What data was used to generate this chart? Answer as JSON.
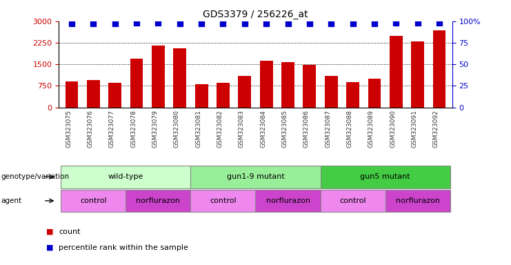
{
  "title": "GDS3379 / 256226_at",
  "samples": [
    "GSM323075",
    "GSM323076",
    "GSM323077",
    "GSM323078",
    "GSM323079",
    "GSM323080",
    "GSM323081",
    "GSM323082",
    "GSM323083",
    "GSM323084",
    "GSM323085",
    "GSM323086",
    "GSM323087",
    "GSM323088",
    "GSM323089",
    "GSM323090",
    "GSM323091",
    "GSM323092"
  ],
  "counts": [
    900,
    950,
    850,
    1700,
    2150,
    2050,
    800,
    850,
    1100,
    1620,
    1580,
    1480,
    1100,
    870,
    1000,
    2500,
    2300,
    2680
  ],
  "percentile_ranks": [
    97,
    97,
    97,
    98,
    98,
    97,
    97,
    97,
    97,
    97,
    97,
    97,
    97,
    97,
    97,
    98,
    98,
    98
  ],
  "bar_color": "#CC0000",
  "dot_color": "#0000CC",
  "ylim_left": [
    0,
    3000
  ],
  "ylim_right": [
    0,
    100
  ],
  "yticks_left": [
    0,
    750,
    1500,
    2250,
    3000
  ],
  "yticks_right": [
    0,
    25,
    50,
    75,
    100
  ],
  "grid_lines": [
    750,
    1500,
    2250
  ],
  "genotype_groups": [
    {
      "label": "wild-type",
      "start": 0,
      "end": 5,
      "color": "#ccffcc"
    },
    {
      "label": "gun1-9 mutant",
      "start": 6,
      "end": 11,
      "color": "#99ee99"
    },
    {
      "label": "gun5 mutant",
      "start": 12,
      "end": 17,
      "color": "#44cc44"
    }
  ],
  "agent_groups": [
    {
      "label": "control",
      "start": 0,
      "end": 2,
      "color": "#ee88ee"
    },
    {
      "label": "norflurazon",
      "start": 3,
      "end": 5,
      "color": "#cc44cc"
    },
    {
      "label": "control",
      "start": 6,
      "end": 8,
      "color": "#ee88ee"
    },
    {
      "label": "norflurazon",
      "start": 9,
      "end": 11,
      "color": "#cc44cc"
    },
    {
      "label": "control",
      "start": 12,
      "end": 14,
      "color": "#ee88ee"
    },
    {
      "label": "norflurazon",
      "start": 15,
      "end": 17,
      "color": "#cc44cc"
    }
  ],
  "bar_color_hex": "#CC0000",
  "dot_color_hex": "#0000CC",
  "background_color": "#ffffff",
  "bar_width": 0.6,
  "dot_size": 40,
  "right_tick_labels": [
    "0",
    "25",
    "50",
    "75",
    "100%"
  ]
}
